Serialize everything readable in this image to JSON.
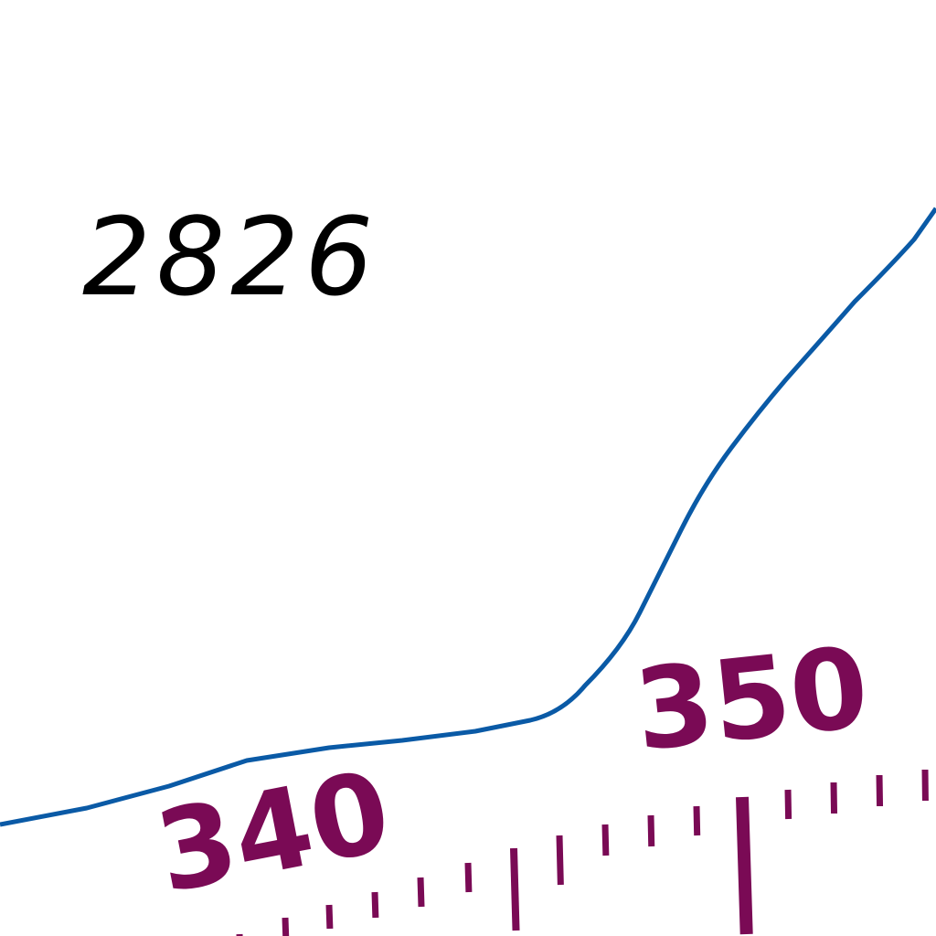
{
  "map": {
    "spot_elevation": "2826",
    "compass_rose": {
      "labels": [
        "340",
        "350"
      ],
      "color": "#7a0a55"
    },
    "contour_line": {
      "color": "#0a5aa6"
    },
    "background": "#ffffff"
  }
}
